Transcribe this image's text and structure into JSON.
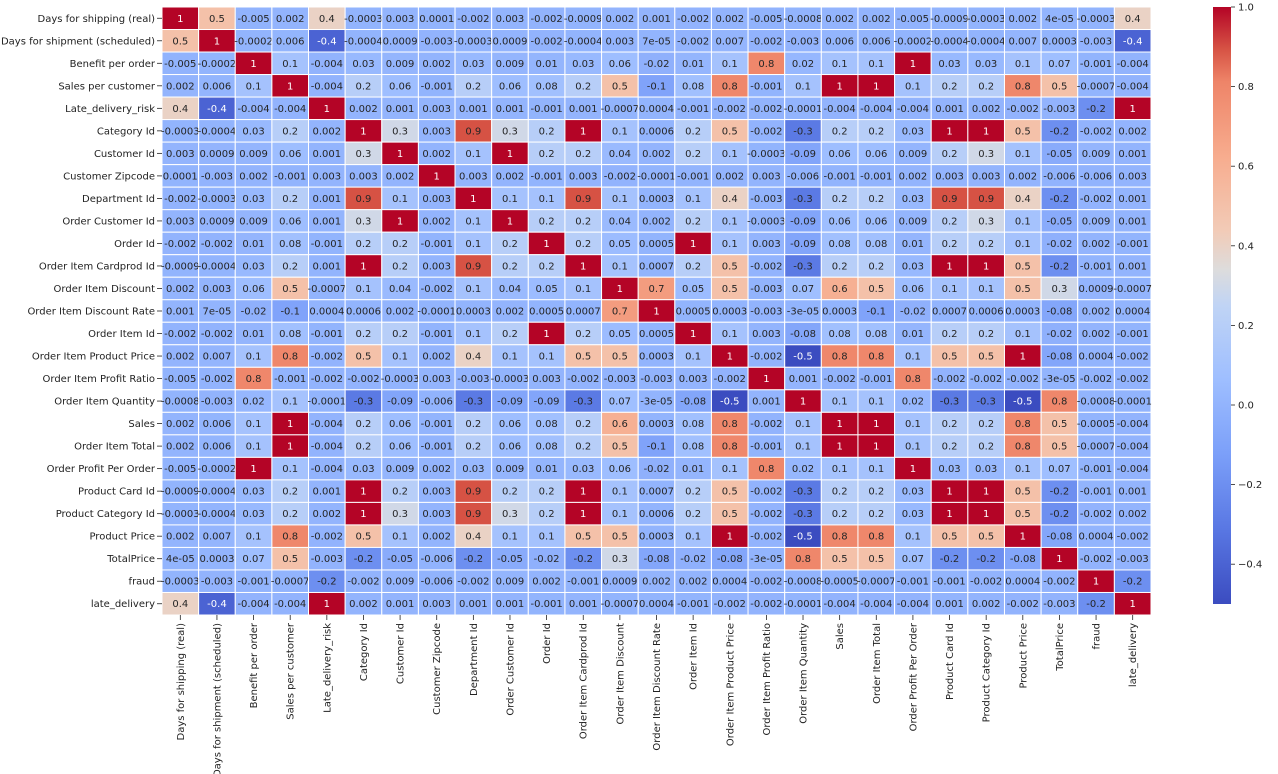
{
  "chart_data": {
    "type": "heatmap",
    "title": "",
    "colormap": "coolwarm",
    "colorbar": {
      "min": -0.5,
      "max": 1.0,
      "ticks": [
        1.0,
        0.8,
        0.6,
        0.4,
        0.2,
        0.0,
        -0.2,
        -0.4
      ],
      "tick_labels": [
        "1.0",
        "0.8",
        "0.6",
        "0.4",
        "0.2",
        "0.0",
        "−0.2",
        "−0.4"
      ]
    },
    "labels": [
      "Days for shipping (real)",
      "Days for shipment (scheduled)",
      "Benefit per order",
      "Sales per customer",
      "Late_delivery_risk",
      "Category Id",
      "Customer Id",
      "Customer Zipcode",
      "Department Id",
      "Order Customer Id",
      "Order Id",
      "Order Item Cardprod Id",
      "Order Item Discount",
      "Order Item Discount Rate",
      "Order Item Id",
      "Order Item Product Price",
      "Order Item Profit Ratio",
      "Order Item Quantity",
      "Sales",
      "Order Item Total",
      "Order Profit Per Order",
      "Product Card Id",
      "Product Category Id",
      "Product Price",
      "TotalPrice",
      "fraud",
      "late_delivery"
    ],
    "values": [
      [
        "1",
        "0.5",
        "-0.005",
        "0.002",
        "0.4",
        "-0.0003",
        "0.003",
        "0.0001",
        "-0.002",
        "0.003",
        "-0.002",
        "-0.0009",
        "0.002",
        "0.001",
        "-0.002",
        "0.002",
        "-0.005",
        "-0.0008",
        "0.002",
        "0.002",
        "-0.005",
        "-0.0009",
        "-0.0003",
        "0.002",
        "4e-05",
        "-0.0003",
        "0.4"
      ],
      [
        "0.5",
        "1",
        "-0.0002",
        "0.006",
        "-0.4",
        "-0.0004",
        "0.0009",
        "-0.003",
        "-0.0003",
        "0.0009",
        "-0.002",
        "-0.0004",
        "0.003",
        "7e-05",
        "-0.002",
        "0.007",
        "-0.002",
        "-0.003",
        "0.006",
        "0.006",
        "-0.0002",
        "-0.0004",
        "-0.0004",
        "0.007",
        "0.0003",
        "-0.003",
        "-0.4"
      ],
      [
        "-0.005",
        "-0.0002",
        "1",
        "0.1",
        "-0.004",
        "0.03",
        "0.009",
        "0.002",
        "0.03",
        "0.009",
        "0.01",
        "0.03",
        "0.06",
        "-0.02",
        "0.01",
        "0.1",
        "0.8",
        "0.02",
        "0.1",
        "0.1",
        "1",
        "0.03",
        "0.03",
        "0.1",
        "0.07",
        "-0.001",
        "-0.004"
      ],
      [
        "0.002",
        "0.006",
        "0.1",
        "1",
        "-0.004",
        "0.2",
        "0.06",
        "-0.001",
        "0.2",
        "0.06",
        "0.08",
        "0.2",
        "0.5",
        "-0.1",
        "0.08",
        "0.8",
        "-0.001",
        "0.1",
        "1",
        "1",
        "0.1",
        "0.2",
        "0.2",
        "0.8",
        "0.5",
        "-0.0007",
        "-0.004"
      ],
      [
        "0.4",
        "-0.4",
        "-0.004",
        "-0.004",
        "1",
        "0.002",
        "0.001",
        "0.003",
        "0.001",
        "0.001",
        "-0.001",
        "0.001",
        "-0.0007",
        "0.0004",
        "-0.001",
        "-0.002",
        "-0.002",
        "-0.0001",
        "-0.004",
        "-0.004",
        "-0.004",
        "0.001",
        "0.002",
        "-0.002",
        "-0.003",
        "-0.2",
        "1"
      ],
      [
        "-0.0003",
        "-0.0004",
        "0.03",
        "0.2",
        "0.002",
        "1",
        "0.3",
        "0.003",
        "0.9",
        "0.3",
        "0.2",
        "1",
        "0.1",
        "0.0006",
        "0.2",
        "0.5",
        "-0.002",
        "-0.3",
        "0.2",
        "0.2",
        "0.03",
        "1",
        "1",
        "0.5",
        "-0.2",
        "-0.002",
        "0.002"
      ],
      [
        "0.003",
        "0.0009",
        "0.009",
        "0.06",
        "0.001",
        "0.3",
        "1",
        "0.002",
        "0.1",
        "1",
        "0.2",
        "0.2",
        "0.04",
        "0.002",
        "0.2",
        "0.1",
        "-0.0003",
        "-0.09",
        "0.06",
        "0.06",
        "0.009",
        "0.2",
        "0.3",
        "0.1",
        "-0.05",
        "0.009",
        "0.001"
      ],
      [
        "0.0001",
        "-0.003",
        "0.002",
        "-0.001",
        "0.003",
        "0.003",
        "0.002",
        "1",
        "0.003",
        "0.002",
        "-0.001",
        "0.003",
        "-0.002",
        "-0.0001",
        "-0.001",
        "0.002",
        "0.003",
        "-0.006",
        "-0.001",
        "-0.001",
        "0.002",
        "0.003",
        "0.003",
        "0.002",
        "-0.006",
        "-0.006",
        "0.003"
      ],
      [
        "-0.002",
        "-0.0003",
        "0.03",
        "0.2",
        "0.001",
        "0.9",
        "0.1",
        "0.003",
        "1",
        "0.1",
        "0.1",
        "0.9",
        "0.1",
        "0.0003",
        "0.1",
        "0.4",
        "-0.003",
        "-0.3",
        "0.2",
        "0.2",
        "0.03",
        "0.9",
        "0.9",
        "0.4",
        "-0.2",
        "-0.002",
        "0.001"
      ],
      [
        "0.003",
        "0.0009",
        "0.009",
        "0.06",
        "0.001",
        "0.3",
        "1",
        "0.002",
        "0.1",
        "1",
        "0.2",
        "0.2",
        "0.04",
        "0.002",
        "0.2",
        "0.1",
        "-0.0003",
        "-0.09",
        "0.06",
        "0.06",
        "0.009",
        "0.2",
        "0.3",
        "0.1",
        "-0.05",
        "0.009",
        "0.001"
      ],
      [
        "-0.002",
        "-0.002",
        "0.01",
        "0.08",
        "-0.001",
        "0.2",
        "0.2",
        "-0.001",
        "0.1",
        "0.2",
        "1",
        "0.2",
        "0.05",
        "0.0005",
        "1",
        "0.1",
        "0.003",
        "-0.09",
        "0.08",
        "0.08",
        "0.01",
        "0.2",
        "0.2",
        "0.1",
        "-0.02",
        "0.002",
        "-0.001"
      ],
      [
        "-0.0009",
        "-0.0004",
        "0.03",
        "0.2",
        "0.001",
        "1",
        "0.2",
        "0.003",
        "0.9",
        "0.2",
        "0.2",
        "1",
        "0.1",
        "0.0007",
        "0.2",
        "0.5",
        "-0.002",
        "-0.3",
        "0.2",
        "0.2",
        "0.03",
        "1",
        "1",
        "0.5",
        "-0.2",
        "-0.001",
        "0.001"
      ],
      [
        "0.002",
        "0.003",
        "0.06",
        "0.5",
        "-0.0007",
        "0.1",
        "0.04",
        "-0.002",
        "0.1",
        "0.04",
        "0.05",
        "0.1",
        "1",
        "0.7",
        "0.05",
        "0.5",
        "-0.003",
        "0.07",
        "0.6",
        "0.5",
        "0.06",
        "0.1",
        "0.1",
        "0.5",
        "0.3",
        "0.0009",
        "-0.0007"
      ],
      [
        "0.001",
        "7e-05",
        "-0.02",
        "-0.1",
        "0.0004",
        "0.0006",
        "0.002",
        "-0.0001",
        "0.0003",
        "0.002",
        "0.0005",
        "0.0007",
        "0.7",
        "1",
        "0.0005",
        "0.0003",
        "-0.003",
        "-3e-05",
        "0.0003",
        "-0.1",
        "-0.02",
        "0.0007",
        "0.0006",
        "0.0003",
        "-0.08",
        "0.002",
        "0.0004"
      ],
      [
        "-0.002",
        "-0.002",
        "0.01",
        "0.08",
        "-0.001",
        "0.2",
        "0.2",
        "-0.001",
        "0.1",
        "0.2",
        "1",
        "0.2",
        "0.05",
        "0.0005",
        "1",
        "0.1",
        "0.003",
        "-0.08",
        "0.08",
        "0.08",
        "0.01",
        "0.2",
        "0.2",
        "0.1",
        "-0.02",
        "0.002",
        "-0.001"
      ],
      [
        "0.002",
        "0.007",
        "0.1",
        "0.8",
        "-0.002",
        "0.5",
        "0.1",
        "0.002",
        "0.4",
        "0.1",
        "0.1",
        "0.5",
        "0.5",
        "0.0003",
        "0.1",
        "1",
        "-0.002",
        "-0.5",
        "0.8",
        "0.8",
        "0.1",
        "0.5",
        "0.5",
        "1",
        "-0.08",
        "0.0004",
        "-0.002"
      ],
      [
        "-0.005",
        "-0.002",
        "0.8",
        "-0.001",
        "-0.002",
        "-0.002",
        "-0.0003",
        "0.003",
        "-0.003",
        "-0.0003",
        "0.003",
        "-0.002",
        "-0.003",
        "-0.003",
        "0.003",
        "-0.002",
        "1",
        "0.001",
        "-0.002",
        "-0.001",
        "0.8",
        "-0.002",
        "-0.002",
        "-0.002",
        "-3e-05",
        "-0.002",
        "-0.002"
      ],
      [
        "-0.0008",
        "-0.003",
        "0.02",
        "0.1",
        "-0.0001",
        "-0.3",
        "-0.09",
        "-0.006",
        "-0.3",
        "-0.09",
        "-0.09",
        "-0.3",
        "0.07",
        "-3e-05",
        "-0.08",
        "-0.5",
        "0.001",
        "1",
        "0.1",
        "0.1",
        "0.02",
        "-0.3",
        "-0.3",
        "-0.5",
        "0.8",
        "-0.0008",
        "-0.0001"
      ],
      [
        "0.002",
        "0.006",
        "0.1",
        "1",
        "-0.004",
        "0.2",
        "0.06",
        "-0.001",
        "0.2",
        "0.06",
        "0.08",
        "0.2",
        "0.6",
        "0.0003",
        "0.08",
        "0.8",
        "-0.002",
        "0.1",
        "1",
        "1",
        "0.1",
        "0.2",
        "0.2",
        "0.8",
        "0.5",
        "-0.0005",
        "-0.004"
      ],
      [
        "0.002",
        "0.006",
        "0.1",
        "1",
        "-0.004",
        "0.2",
        "0.06",
        "-0.001",
        "0.2",
        "0.06",
        "0.08",
        "0.2",
        "0.5",
        "-0.1",
        "0.08",
        "0.8",
        "-0.001",
        "0.1",
        "1",
        "1",
        "0.1",
        "0.2",
        "0.2",
        "0.8",
        "0.5",
        "-0.0007",
        "-0.004"
      ],
      [
        "-0.005",
        "-0.0002",
        "1",
        "0.1",
        "-0.004",
        "0.03",
        "0.009",
        "0.002",
        "0.03",
        "0.009",
        "0.01",
        "0.03",
        "0.06",
        "-0.02",
        "0.01",
        "0.1",
        "0.8",
        "0.02",
        "0.1",
        "0.1",
        "1",
        "0.03",
        "0.03",
        "0.1",
        "0.07",
        "-0.001",
        "-0.004"
      ],
      [
        "-0.0009",
        "-0.0004",
        "0.03",
        "0.2",
        "0.001",
        "1",
        "0.2",
        "0.003",
        "0.9",
        "0.2",
        "0.2",
        "1",
        "0.1",
        "0.0007",
        "0.2",
        "0.5",
        "-0.002",
        "-0.3",
        "0.2",
        "0.2",
        "0.03",
        "1",
        "1",
        "0.5",
        "-0.2",
        "-0.001",
        "0.001"
      ],
      [
        "-0.0003",
        "-0.0004",
        "0.03",
        "0.2",
        "0.002",
        "1",
        "0.3",
        "0.003",
        "0.9",
        "0.3",
        "0.2",
        "1",
        "0.1",
        "0.0006",
        "0.2",
        "0.5",
        "-0.002",
        "-0.3",
        "0.2",
        "0.2",
        "0.03",
        "1",
        "1",
        "0.5",
        "-0.2",
        "-0.002",
        "0.002"
      ],
      [
        "0.002",
        "0.007",
        "0.1",
        "0.8",
        "-0.002",
        "0.5",
        "0.1",
        "0.002",
        "0.4",
        "0.1",
        "0.1",
        "0.5",
        "0.5",
        "0.0003",
        "0.1",
        "1",
        "-0.002",
        "-0.5",
        "0.8",
        "0.8",
        "0.1",
        "0.5",
        "0.5",
        "1",
        "-0.08",
        "0.0004",
        "-0.002"
      ],
      [
        "4e-05",
        "0.0003",
        "0.07",
        "0.5",
        "-0.003",
        "-0.2",
        "-0.05",
        "-0.006",
        "-0.2",
        "-0.05",
        "-0.02",
        "-0.2",
        "0.3",
        "-0.08",
        "-0.02",
        "-0.08",
        "-3e-05",
        "0.8",
        "0.5",
        "0.5",
        "0.07",
        "-0.2",
        "-0.2",
        "-0.08",
        "1",
        "-0.002",
        "-0.003"
      ],
      [
        "-0.0003",
        "-0.003",
        "-0.001",
        "-0.0007",
        "-0.2",
        "-0.002",
        "0.009",
        "-0.006",
        "-0.002",
        "0.009",
        "0.002",
        "-0.001",
        "0.0009",
        "0.002",
        "0.002",
        "0.0004",
        "-0.002",
        "-0.0008",
        "-0.0005",
        "-0.0007",
        "-0.001",
        "-0.001",
        "-0.002",
        "0.0004",
        "-0.002",
        "1",
        "-0.2"
      ],
      [
        "0.4",
        "-0.4",
        "-0.004",
        "-0.004",
        "1",
        "0.002",
        "0.001",
        "0.003",
        "0.001",
        "0.001",
        "-0.001",
        "0.001",
        "-0.0007",
        "0.0004",
        "-0.001",
        "-0.002",
        "-0.002",
        "-0.0001",
        "-0.004",
        "-0.004",
        "-0.004",
        "0.001",
        "0.002",
        "-0.002",
        "-0.003",
        "-0.2",
        "1"
      ]
    ]
  }
}
